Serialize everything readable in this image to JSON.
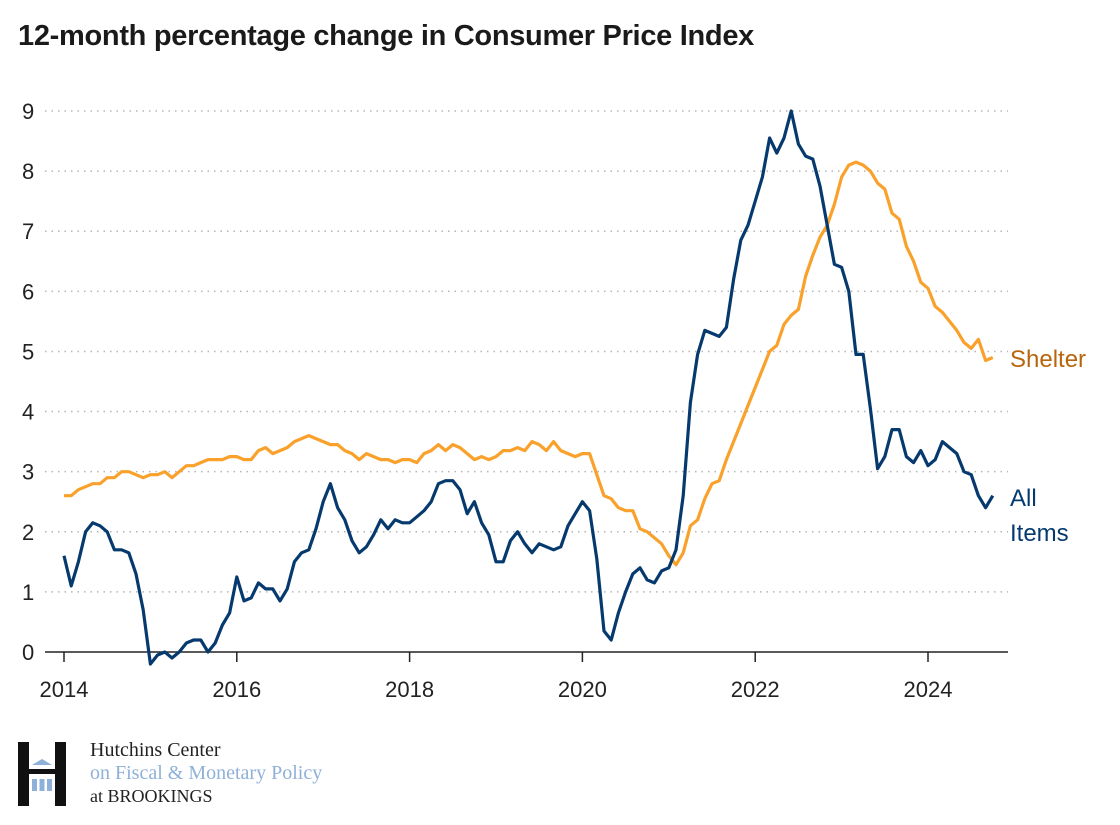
{
  "title": "12-month percentage change in Consumer Price Index",
  "chart_data": {
    "type": "line",
    "title": "12-month percentage change in Consumer Price Index",
    "xlabel": "",
    "ylabel": "",
    "x_start": "2014-01",
    "x_frequency": "monthly",
    "x_ticks": [
      "2014",
      "2016",
      "2018",
      "2020",
      "2022",
      "2024"
    ],
    "y_ticks": [
      "0",
      "1",
      "2",
      "3",
      "4",
      "5",
      "6",
      "7",
      "8",
      "9"
    ],
    "ylim": [
      0,
      9
    ],
    "grid": "horizontal dotted",
    "series": [
      {
        "name": "Shelter",
        "color": "#f9a12b",
        "label_color": "#b8650c",
        "values": [
          2.6,
          2.6,
          2.7,
          2.75,
          2.8,
          2.8,
          2.9,
          2.9,
          3.0,
          3.0,
          2.95,
          2.9,
          2.95,
          2.95,
          3.0,
          2.9,
          3.0,
          3.1,
          3.1,
          3.15,
          3.2,
          3.2,
          3.2,
          3.25,
          3.25,
          3.2,
          3.2,
          3.35,
          3.4,
          3.3,
          3.35,
          3.4,
          3.5,
          3.55,
          3.6,
          3.55,
          3.5,
          3.45,
          3.45,
          3.35,
          3.3,
          3.2,
          3.3,
          3.25,
          3.2,
          3.2,
          3.15,
          3.2,
          3.2,
          3.15,
          3.3,
          3.35,
          3.45,
          3.35,
          3.45,
          3.4,
          3.3,
          3.2,
          3.25,
          3.2,
          3.25,
          3.35,
          3.35,
          3.4,
          3.35,
          3.5,
          3.45,
          3.35,
          3.5,
          3.35,
          3.3,
          3.25,
          3.3,
          3.3,
          2.95,
          2.6,
          2.55,
          2.4,
          2.35,
          2.35,
          2.05,
          2.0,
          1.9,
          1.8,
          1.6,
          1.45,
          1.65,
          2.1,
          2.2,
          2.55,
          2.8,
          2.85,
          3.2,
          3.5,
          3.8,
          4.1,
          4.4,
          4.7,
          5.0,
          5.1,
          5.45,
          5.6,
          5.7,
          6.25,
          6.6,
          6.9,
          7.1,
          7.45,
          7.9,
          8.1,
          8.15,
          8.1,
          8.0,
          7.8,
          7.7,
          7.3,
          7.2,
          6.75,
          6.5,
          6.15,
          6.05,
          5.75,
          5.65,
          5.5,
          5.35,
          5.15,
          5.05,
          5.2,
          4.85,
          4.9
        ]
      },
      {
        "name": "All Items",
        "color": "#063a6e",
        "label_color": "#063a6e",
        "values": [
          1.6,
          1.1,
          1.5,
          2.0,
          2.15,
          2.1,
          2.0,
          1.7,
          1.7,
          1.65,
          1.3,
          0.7,
          -0.2,
          -0.05,
          0.0,
          -0.1,
          0.0,
          0.15,
          0.2,
          0.2,
          0.0,
          0.15,
          0.45,
          0.65,
          1.25,
          0.85,
          0.9,
          1.15,
          1.05,
          1.05,
          0.85,
          1.05,
          1.5,
          1.65,
          1.7,
          2.05,
          2.5,
          2.8,
          2.4,
          2.2,
          1.85,
          1.65,
          1.75,
          1.95,
          2.2,
          2.05,
          2.2,
          2.15,
          2.15,
          2.25,
          2.35,
          2.5,
          2.8,
          2.85,
          2.85,
          2.7,
          2.3,
          2.5,
          2.15,
          1.95,
          1.5,
          1.5,
          1.85,
          2.0,
          1.8,
          1.65,
          1.8,
          1.75,
          1.7,
          1.75,
          2.1,
          2.3,
          2.5,
          2.35,
          1.55,
          0.35,
          0.2,
          0.65,
          1.0,
          1.3,
          1.4,
          1.2,
          1.15,
          1.35,
          1.4,
          1.7,
          2.6,
          4.15,
          4.95,
          5.35,
          5.3,
          5.25,
          5.4,
          6.2,
          6.85,
          7.1,
          7.5,
          7.9,
          8.55,
          8.3,
          8.55,
          9.0,
          8.45,
          8.25,
          8.2,
          7.75,
          7.1,
          6.45,
          6.4,
          6.0,
          4.95,
          4.95,
          4.05,
          3.05,
          3.25,
          3.7,
          3.7,
          3.25,
          3.15,
          3.35,
          3.1,
          3.2,
          3.5,
          3.4,
          3.3,
          3.0,
          2.95,
          2.6,
          2.4,
          2.6
        ]
      }
    ],
    "series_labels": {
      "shelter": "Shelter",
      "all_items_line1": "All",
      "all_items_line2": "Items"
    }
  },
  "logo": {
    "line1": "Hutchins Center",
    "line2": "on Fiscal & Monetary Policy",
    "line3": "at BROOKINGS",
    "line1_color": "#222222",
    "line2_color": "#8fb0d8",
    "line3_color": "#222222"
  }
}
